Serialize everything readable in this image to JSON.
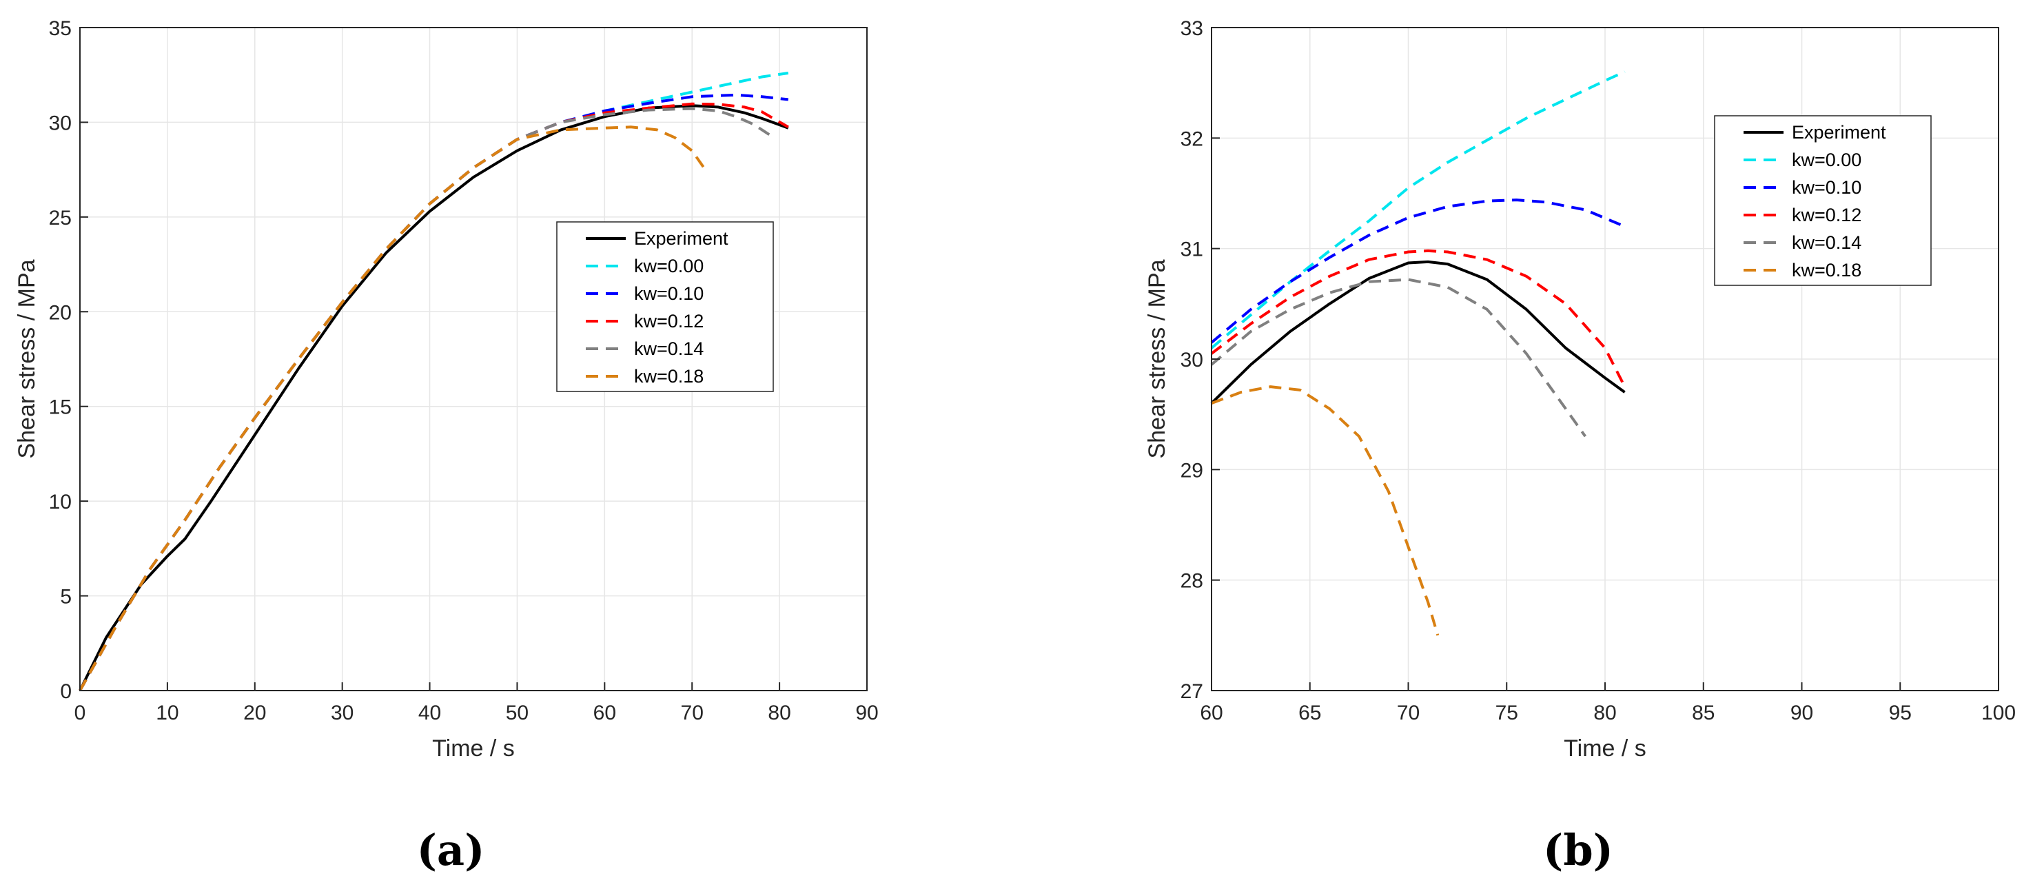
{
  "chart_data": [
    {
      "type": "line",
      "panel_label": "(a)",
      "xlabel": "Time / s",
      "ylabel": "Shear stress / MPa",
      "xlim": [
        0,
        90
      ],
      "ylim": [
        0,
        35
      ],
      "xticks": [
        0,
        10,
        20,
        30,
        40,
        50,
        60,
        70,
        80,
        90
      ],
      "yticks": [
        0,
        5,
        10,
        15,
        20,
        25,
        30,
        35
      ],
      "grid": true,
      "legend_position": "center-right",
      "series": [
        {
          "name": "Experiment",
          "color": "#000000",
          "style": "solid",
          "x": [
            0,
            3,
            7,
            10,
            12,
            15,
            20,
            25,
            30,
            35,
            40,
            45,
            50,
            55,
            60,
            65,
            70,
            73,
            76,
            78,
            81
          ],
          "y": [
            0,
            2.8,
            5.6,
            7.1,
            8.0,
            10.0,
            13.5,
            17.0,
            20.3,
            23.1,
            25.3,
            27.1,
            28.5,
            29.6,
            30.3,
            30.75,
            30.88,
            30.8,
            30.5,
            30.2,
            29.7
          ]
        },
        {
          "name": "kw=0.00",
          "color": "#00e5ee",
          "style": "dashed",
          "x": [
            0,
            4,
            8,
            12,
            16,
            20,
            25,
            30,
            35,
            40,
            45,
            50,
            55,
            60,
            65,
            70,
            75,
            78,
            81
          ],
          "y": [
            0,
            3.3,
            6.4,
            9.0,
            11.8,
            14.4,
            17.5,
            20.5,
            23.3,
            25.7,
            27.6,
            29.1,
            30.0,
            30.6,
            31.1,
            31.6,
            32.1,
            32.4,
            32.6
          ]
        },
        {
          "name": "kw=0.10",
          "color": "#0000ff",
          "style": "dashed",
          "x": [
            0,
            4,
            8,
            12,
            16,
            20,
            25,
            30,
            35,
            40,
            45,
            50,
            55,
            60,
            65,
            70,
            75,
            78,
            81
          ],
          "y": [
            0,
            3.3,
            6.4,
            9.0,
            11.8,
            14.4,
            17.5,
            20.5,
            23.3,
            25.7,
            27.6,
            29.1,
            30.0,
            30.6,
            31.0,
            31.35,
            31.44,
            31.35,
            31.2
          ]
        },
        {
          "name": "kw=0.12",
          "color": "#ff0000",
          "style": "dashed",
          "x": [
            0,
            4,
            8,
            12,
            16,
            20,
            25,
            30,
            35,
            40,
            45,
            50,
            55,
            60,
            65,
            70,
            73,
            76,
            78,
            81
          ],
          "y": [
            0,
            3.3,
            6.4,
            9.0,
            11.8,
            14.4,
            17.5,
            20.5,
            23.3,
            25.7,
            27.6,
            29.1,
            30.0,
            30.5,
            30.75,
            30.97,
            30.95,
            30.8,
            30.55,
            29.75
          ]
        },
        {
          "name": "kw=0.14",
          "color": "#808080",
          "style": "dashed",
          "x": [
            0,
            4,
            8,
            12,
            16,
            20,
            25,
            30,
            35,
            40,
            45,
            50,
            55,
            60,
            65,
            70,
            73,
            75,
            77,
            79
          ],
          "y": [
            0,
            3.3,
            6.4,
            9.0,
            11.8,
            14.4,
            17.5,
            20.5,
            23.3,
            25.7,
            27.6,
            29.1,
            30.0,
            30.4,
            30.65,
            30.72,
            30.6,
            30.3,
            29.9,
            29.3
          ]
        },
        {
          "name": "kw=0.18",
          "color": "#d98012",
          "style": "dashed",
          "x": [
            0,
            4,
            8,
            12,
            16,
            20,
            25,
            30,
            35,
            40,
            45,
            50,
            55,
            60,
            63,
            66,
            68,
            70,
            71.5
          ],
          "y": [
            0,
            3.3,
            6.4,
            9.0,
            11.8,
            14.4,
            17.5,
            20.5,
            23.3,
            25.7,
            27.6,
            29.1,
            29.6,
            29.7,
            29.75,
            29.6,
            29.2,
            28.5,
            27.5
          ]
        }
      ]
    },
    {
      "type": "line",
      "panel_label": "(b)",
      "xlabel": "Time / s",
      "ylabel": "Shear stress / MPa",
      "xlim": [
        60,
        100
      ],
      "ylim": [
        27,
        33
      ],
      "xticks": [
        60,
        65,
        70,
        75,
        80,
        85,
        90,
        95,
        100
      ],
      "yticks": [
        27,
        28,
        29,
        30,
        31,
        32,
        33
      ],
      "grid": true,
      "legend_position": "top-right",
      "series": [
        {
          "name": "Experiment",
          "color": "#000000",
          "style": "solid",
          "x": [
            60,
            62,
            64,
            66,
            68,
            70,
            71,
            72,
            74,
            76,
            78,
            80,
            81
          ],
          "y": [
            29.6,
            29.95,
            30.25,
            30.5,
            30.73,
            30.87,
            30.88,
            30.86,
            30.72,
            30.45,
            30.1,
            29.83,
            29.7
          ]
        },
        {
          "name": "kw=0.00",
          "color": "#00e5ee",
          "style": "dashed",
          "x": [
            60,
            62,
            64,
            66,
            68,
            70,
            72,
            74,
            76,
            78,
            80,
            81
          ],
          "y": [
            30.1,
            30.4,
            30.7,
            30.98,
            31.25,
            31.55,
            31.78,
            31.98,
            32.18,
            32.35,
            32.52,
            32.6
          ]
        },
        {
          "name": "kw=0.10",
          "color": "#0000ff",
          "style": "dashed",
          "x": [
            60,
            62,
            64,
            66,
            68,
            70,
            72,
            74,
            75.5,
            77,
            79,
            81
          ],
          "y": [
            30.15,
            30.45,
            30.7,
            30.92,
            31.12,
            31.28,
            31.38,
            31.43,
            31.44,
            31.42,
            31.35,
            31.2
          ]
        },
        {
          "name": "kw=0.12",
          "color": "#ff0000",
          "style": "dashed",
          "x": [
            60,
            62,
            64,
            66,
            68,
            70,
            71,
            72,
            74,
            76,
            78,
            80,
            81
          ],
          "y": [
            30.05,
            30.32,
            30.56,
            30.75,
            30.9,
            30.97,
            30.98,
            30.97,
            30.9,
            30.75,
            30.5,
            30.1,
            29.75
          ]
        },
        {
          "name": "kw=0.14",
          "color": "#808080",
          "style": "dashed",
          "x": [
            60,
            62,
            64,
            66,
            68,
            70,
            72,
            74,
            76,
            77,
            78,
            79
          ],
          "y": [
            29.95,
            30.25,
            30.45,
            30.6,
            30.7,
            30.72,
            30.65,
            30.45,
            30.05,
            29.8,
            29.55,
            29.3
          ]
        },
        {
          "name": "kw=0.18",
          "color": "#d98012",
          "style": "dashed",
          "x": [
            60,
            61.5,
            63,
            64.5,
            66,
            67.5,
            69,
            70,
            71,
            71.5
          ],
          "y": [
            29.6,
            29.7,
            29.75,
            29.72,
            29.55,
            29.3,
            28.8,
            28.3,
            27.8,
            27.5
          ]
        }
      ]
    }
  ]
}
